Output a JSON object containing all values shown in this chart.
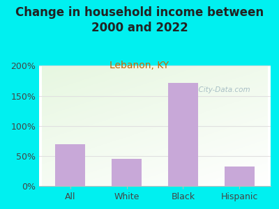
{
  "title": "Change in household income between\n2000 and 2022",
  "subtitle": "Lebanon, KY",
  "categories": [
    "All",
    "White",
    "Black",
    "Hispanic"
  ],
  "values": [
    70,
    45,
    172,
    32
  ],
  "bar_color": "#c8a8d8",
  "background_color": "#00f0f0",
  "title_fontsize": 12,
  "subtitle_fontsize": 10,
  "subtitle_color": "#cc6600",
  "ylim": [
    0,
    200
  ],
  "yticks": [
    0,
    50,
    100,
    150,
    200
  ],
  "watermark": "  City-Data.com",
  "watermark_color": "#a0b8c0",
  "tick_color": "#444444",
  "grid_color": "#e0e0e0"
}
